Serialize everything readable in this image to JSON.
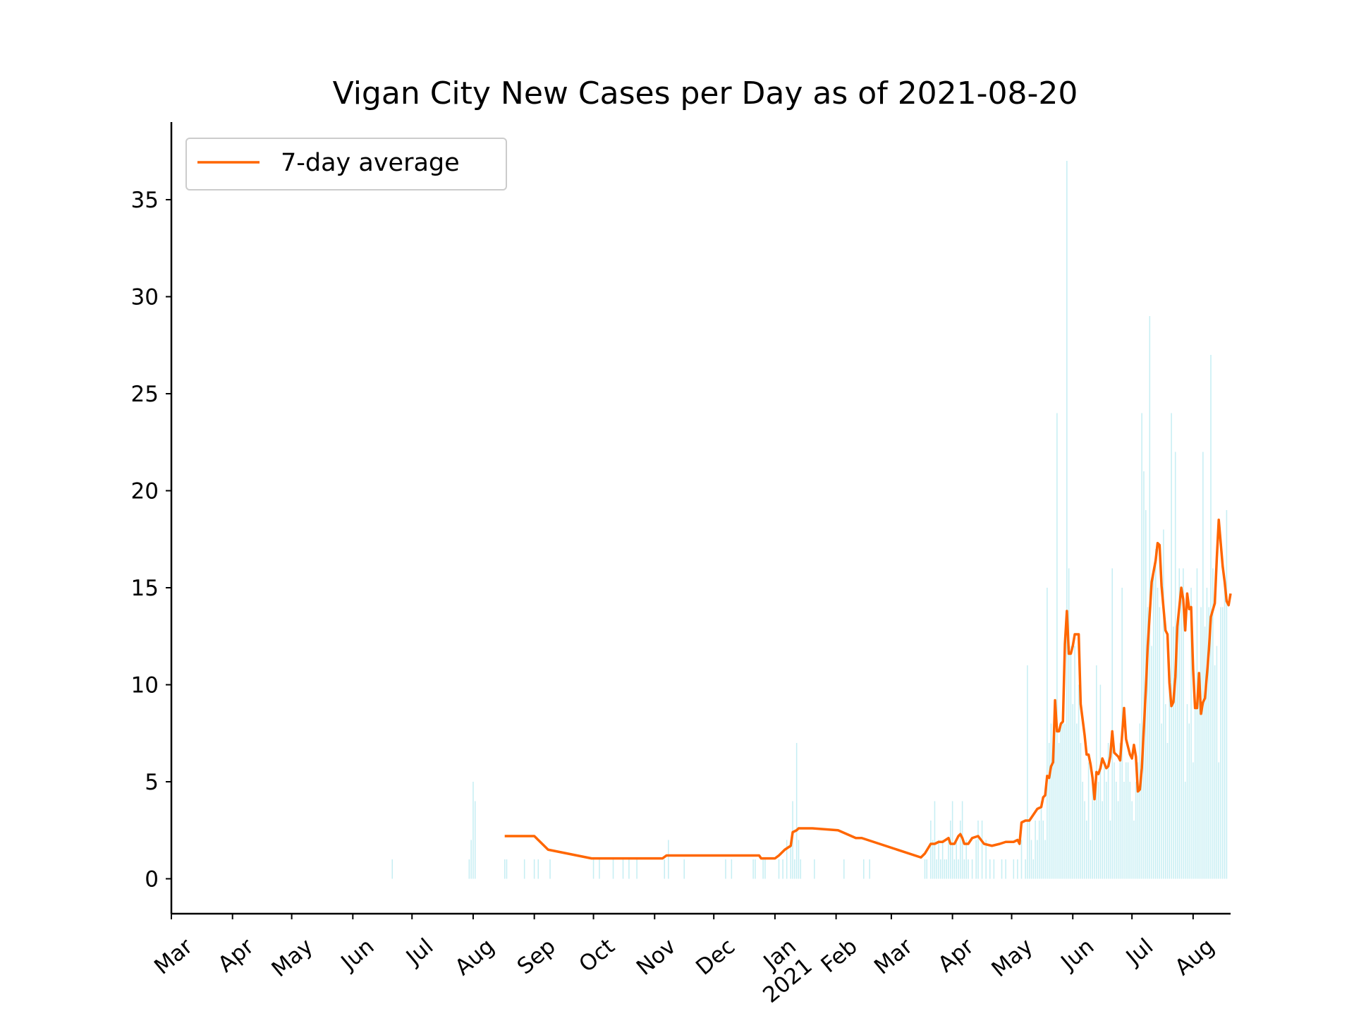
{
  "chart_data": {
    "type": "bar",
    "title": "Vigan City New Cases per Day as of 2021-08-20",
    "xlabel": "",
    "ylabel": "",
    "ylim": [
      -1.8,
      39
    ],
    "yticks": [
      0,
      5,
      10,
      15,
      20,
      25,
      30,
      35
    ],
    "xlim": [
      "2020-03-01",
      "2021-08-20"
    ],
    "xticks": [
      {
        "date": "2020-03-01",
        "label": "Mar"
      },
      {
        "date": "2020-04-01",
        "label": "Apr"
      },
      {
        "date": "2020-05-01",
        "label": "May"
      },
      {
        "date": "2020-06-01",
        "label": "Jun"
      },
      {
        "date": "2020-07-01",
        "label": "Jul"
      },
      {
        "date": "2020-08-01",
        "label": "Aug"
      },
      {
        "date": "2020-09-01",
        "label": "Sep"
      },
      {
        "date": "2020-10-01",
        "label": "Oct"
      },
      {
        "date": "2020-11-01",
        "label": "Nov"
      },
      {
        "date": "2020-12-01",
        "label": "Dec"
      },
      {
        "date": "2021-01-01",
        "label": "Jan\n2021"
      },
      {
        "date": "2021-02-01",
        "label": "Feb"
      },
      {
        "date": "2021-03-01",
        "label": "Mar"
      },
      {
        "date": "2021-04-01",
        "label": "Apr"
      },
      {
        "date": "2021-05-01",
        "label": "May"
      },
      {
        "date": "2021-06-01",
        "label": "Jun"
      },
      {
        "date": "2021-07-01",
        "label": "Jul"
      },
      {
        "date": "2021-08-01",
        "label": "Aug"
      }
    ],
    "legend": {
      "position": "top-left",
      "entries": [
        "7-day average"
      ]
    },
    "grid": false,
    "colors": {
      "bars": "#c6eef3",
      "line": "#ff6600"
    },
    "bars": [
      [
        "2020-06-21",
        1
      ],
      [
        "2020-07-30",
        1
      ],
      [
        "2020-07-31",
        2
      ],
      [
        "2020-08-01",
        5
      ],
      [
        "2020-08-02",
        4
      ],
      [
        "2020-08-17",
        1
      ],
      [
        "2020-08-18",
        1
      ],
      [
        "2020-08-27",
        1
      ],
      [
        "2020-09-01",
        1
      ],
      [
        "2020-09-03",
        1
      ],
      [
        "2020-09-09",
        1
      ],
      [
        "2020-10-01",
        1
      ],
      [
        "2020-10-04",
        1
      ],
      [
        "2020-10-11",
        1
      ],
      [
        "2020-10-16",
        1
      ],
      [
        "2020-10-19",
        1
      ],
      [
        "2020-10-23",
        1
      ],
      [
        "2020-11-06",
        1
      ],
      [
        "2020-11-08",
        2
      ],
      [
        "2020-11-16",
        1
      ],
      [
        "2020-12-07",
        1
      ],
      [
        "2020-12-10",
        1
      ],
      [
        "2020-12-21",
        1
      ],
      [
        "2020-12-22",
        1
      ],
      [
        "2020-12-26",
        1
      ],
      [
        "2020-12-27",
        1
      ],
      [
        "2021-01-03",
        1
      ],
      [
        "2021-01-05",
        1
      ],
      [
        "2021-01-07",
        2
      ],
      [
        "2021-01-09",
        2
      ],
      [
        "2021-01-10",
        4
      ],
      [
        "2021-01-11",
        1
      ],
      [
        "2021-01-12",
        7
      ],
      [
        "2021-01-13",
        2
      ],
      [
        "2021-01-14",
        1
      ],
      [
        "2021-01-21",
        1
      ],
      [
        "2021-02-05",
        1
      ],
      [
        "2021-02-15",
        1
      ],
      [
        "2021-02-18",
        1
      ],
      [
        "2021-03-18",
        1
      ],
      [
        "2021-03-19",
        1
      ],
      [
        "2021-03-21",
        3
      ],
      [
        "2021-03-22",
        2
      ],
      [
        "2021-03-23",
        4
      ],
      [
        "2021-03-24",
        1
      ],
      [
        "2021-03-25",
        2
      ],
      [
        "2021-03-26",
        1
      ],
      [
        "2021-03-27",
        2
      ],
      [
        "2021-03-28",
        1
      ],
      [
        "2021-03-29",
        1
      ],
      [
        "2021-03-30",
        2
      ],
      [
        "2021-03-31",
        3
      ],
      [
        "2021-04-01",
        4
      ],
      [
        "2021-04-02",
        1
      ],
      [
        "2021-04-03",
        2
      ],
      [
        "2021-04-04",
        1
      ],
      [
        "2021-04-05",
        3
      ],
      [
        "2021-04-06",
        4
      ],
      [
        "2021-04-07",
        1
      ],
      [
        "2021-04-08",
        2
      ],
      [
        "2021-04-09",
        1
      ],
      [
        "2021-04-11",
        1
      ],
      [
        "2021-04-13",
        2
      ],
      [
        "2021-04-14",
        3
      ],
      [
        "2021-04-16",
        3
      ],
      [
        "2021-04-18",
        2
      ],
      [
        "2021-04-20",
        1
      ],
      [
        "2021-04-22",
        1
      ],
      [
        "2021-04-26",
        1
      ],
      [
        "2021-04-28",
        1
      ],
      [
        "2021-05-02",
        1
      ],
      [
        "2021-05-04",
        1
      ],
      [
        "2021-05-06",
        2
      ],
      [
        "2021-05-08",
        1
      ],
      [
        "2021-05-09",
        11
      ],
      [
        "2021-05-10",
        3
      ],
      [
        "2021-05-11",
        2
      ],
      [
        "2021-05-12",
        1
      ],
      [
        "2021-05-13",
        3
      ],
      [
        "2021-05-14",
        2
      ],
      [
        "2021-05-15",
        3
      ],
      [
        "2021-05-16",
        4
      ],
      [
        "2021-05-17",
        3
      ],
      [
        "2021-05-18",
        2
      ],
      [
        "2021-05-19",
        15
      ],
      [
        "2021-05-20",
        7
      ],
      [
        "2021-05-21",
        8
      ],
      [
        "2021-05-22",
        6
      ],
      [
        "2021-05-23",
        9
      ],
      [
        "2021-05-24",
        24
      ],
      [
        "2021-05-25",
        7
      ],
      [
        "2021-05-26",
        8
      ],
      [
        "2021-05-27",
        9
      ],
      [
        "2021-05-28",
        8
      ],
      [
        "2021-05-29",
        37
      ],
      [
        "2021-05-30",
        16
      ],
      [
        "2021-05-31",
        12
      ],
      [
        "2021-06-01",
        9
      ],
      [
        "2021-06-02",
        12
      ],
      [
        "2021-06-03",
        8
      ],
      [
        "2021-06-04",
        10
      ],
      [
        "2021-06-05",
        7
      ],
      [
        "2021-06-06",
        5
      ],
      [
        "2021-06-07",
        4
      ],
      [
        "2021-06-08",
        3
      ],
      [
        "2021-06-09",
        6
      ],
      [
        "2021-06-10",
        2
      ],
      [
        "2021-06-11",
        5
      ],
      [
        "2021-06-12",
        4
      ],
      [
        "2021-06-13",
        11
      ],
      [
        "2021-06-14",
        5
      ],
      [
        "2021-06-15",
        10
      ],
      [
        "2021-06-16",
        4
      ],
      [
        "2021-06-17",
        6
      ],
      [
        "2021-06-18",
        5
      ],
      [
        "2021-06-19",
        7
      ],
      [
        "2021-06-20",
        3
      ],
      [
        "2021-06-21",
        16
      ],
      [
        "2021-06-22",
        6
      ],
      [
        "2021-06-23",
        5
      ],
      [
        "2021-06-24",
        4
      ],
      [
        "2021-06-25",
        7
      ],
      [
        "2021-06-26",
        15
      ],
      [
        "2021-06-27",
        5
      ],
      [
        "2021-06-28",
        6
      ],
      [
        "2021-06-29",
        6
      ],
      [
        "2021-06-30",
        5
      ],
      [
        "2021-07-01",
        4
      ],
      [
        "2021-07-02",
        3
      ],
      [
        "2021-07-03",
        5
      ],
      [
        "2021-07-04",
        6
      ],
      [
        "2021-07-05",
        8
      ],
      [
        "2021-07-06",
        24
      ],
      [
        "2021-07-07",
        21
      ],
      [
        "2021-07-08",
        19
      ],
      [
        "2021-07-09",
        14
      ],
      [
        "2021-07-10",
        29
      ],
      [
        "2021-07-11",
        12
      ],
      [
        "2021-07-12",
        16
      ],
      [
        "2021-07-13",
        17
      ],
      [
        "2021-07-14",
        15
      ],
      [
        "2021-07-15",
        14
      ],
      [
        "2021-07-16",
        8
      ],
      [
        "2021-07-17",
        18
      ],
      [
        "2021-07-18",
        9
      ],
      [
        "2021-07-19",
        7
      ],
      [
        "2021-07-20",
        10
      ],
      [
        "2021-07-21",
        24
      ],
      [
        "2021-07-22",
        13
      ],
      [
        "2021-07-23",
        22
      ],
      [
        "2021-07-24",
        12
      ],
      [
        "2021-07-25",
        16
      ],
      [
        "2021-07-26",
        15
      ],
      [
        "2021-07-27",
        16
      ],
      [
        "2021-07-28",
        5
      ],
      [
        "2021-07-29",
        9
      ],
      [
        "2021-07-30",
        8
      ],
      [
        "2021-07-31",
        15
      ],
      [
        "2021-08-01",
        6
      ],
      [
        "2021-08-02",
        9
      ],
      [
        "2021-08-03",
        16
      ],
      [
        "2021-08-04",
        10
      ],
      [
        "2021-08-05",
        14
      ],
      [
        "2021-08-06",
        22
      ],
      [
        "2021-08-07",
        13
      ],
      [
        "2021-08-08",
        15
      ],
      [
        "2021-08-09",
        14
      ],
      [
        "2021-08-10",
        27
      ],
      [
        "2021-08-11",
        16
      ],
      [
        "2021-08-12",
        11
      ],
      [
        "2021-08-13",
        12
      ],
      [
        "2021-08-14",
        6
      ],
      [
        "2021-08-15",
        14
      ],
      [
        "2021-08-16",
        14
      ],
      [
        "2021-08-17",
        15
      ],
      [
        "2021-08-18",
        19
      ]
    ],
    "series": [
      {
        "name": "7-day average",
        "points": [
          [
            "2020-08-17",
            2.2
          ],
          [
            "2020-09-01",
            2.2
          ],
          [
            "2020-09-04",
            1.9
          ],
          [
            "2020-09-08",
            1.5
          ],
          [
            "2020-09-30",
            1.05
          ],
          [
            "2020-11-05",
            1.05
          ],
          [
            "2020-11-07",
            1.2
          ],
          [
            "2020-12-24",
            1.2
          ],
          [
            "2020-12-25",
            1.05
          ],
          [
            "2021-01-01",
            1.05
          ],
          [
            "2021-01-03",
            1.2
          ],
          [
            "2021-01-06",
            1.5
          ],
          [
            "2021-01-09",
            1.7
          ],
          [
            "2021-01-10",
            2.4
          ],
          [
            "2021-01-12",
            2.5
          ],
          [
            "2021-01-13",
            2.6
          ],
          [
            "2021-01-20",
            2.6
          ],
          [
            "2021-02-02",
            2.5
          ],
          [
            "2021-02-11",
            2.1
          ],
          [
            "2021-02-14",
            2.1
          ],
          [
            "2021-03-16",
            1.1
          ],
          [
            "2021-03-18",
            1.3
          ],
          [
            "2021-03-21",
            1.8
          ],
          [
            "2021-03-23",
            1.8
          ],
          [
            "2021-03-25",
            1.9
          ],
          [
            "2021-03-27",
            1.9
          ],
          [
            "2021-03-30",
            2.1
          ],
          [
            "2021-03-31",
            1.8
          ],
          [
            "2021-04-02",
            1.8
          ],
          [
            "2021-04-04",
            2.2
          ],
          [
            "2021-04-05",
            2.3
          ],
          [
            "2021-04-06",
            2.1
          ],
          [
            "2021-04-07",
            1.8
          ],
          [
            "2021-04-09",
            1.8
          ],
          [
            "2021-04-11",
            2.1
          ],
          [
            "2021-04-14",
            2.2
          ],
          [
            "2021-04-17",
            1.8
          ],
          [
            "2021-04-21",
            1.7
          ],
          [
            "2021-04-25",
            1.8
          ],
          [
            "2021-04-28",
            1.9
          ],
          [
            "2021-05-02",
            1.9
          ],
          [
            "2021-05-04",
            2.0
          ],
          [
            "2021-05-05",
            1.8
          ],
          [
            "2021-05-06",
            2.9
          ],
          [
            "2021-05-08",
            3.0
          ],
          [
            "2021-05-10",
            3.0
          ],
          [
            "2021-05-12",
            3.3
          ],
          [
            "2021-05-14",
            3.6
          ],
          [
            "2021-05-16",
            3.7
          ],
          [
            "2021-05-17",
            4.2
          ],
          [
            "2021-05-18",
            4.3
          ],
          [
            "2021-05-19",
            5.3
          ],
          [
            "2021-05-20",
            5.2
          ],
          [
            "2021-05-21",
            5.8
          ],
          [
            "2021-05-22",
            6.0
          ],
          [
            "2021-05-23",
            9.2
          ],
          [
            "2021-05-24",
            7.6
          ],
          [
            "2021-05-25",
            7.6
          ],
          [
            "2021-05-26",
            8.0
          ],
          [
            "2021-05-27",
            8.1
          ],
          [
            "2021-05-28",
            12.1
          ],
          [
            "2021-05-29",
            13.8
          ],
          [
            "2021-05-30",
            11.6
          ],
          [
            "2021-05-31",
            11.6
          ],
          [
            "2021-06-01",
            12.0
          ],
          [
            "2021-06-02",
            12.6
          ],
          [
            "2021-06-04",
            12.6
          ],
          [
            "2021-06-05",
            9.0
          ],
          [
            "2021-06-07",
            7.4
          ],
          [
            "2021-06-08",
            6.4
          ],
          [
            "2021-06-09",
            6.4
          ],
          [
            "2021-06-10",
            5.9
          ],
          [
            "2021-06-11",
            5.2
          ],
          [
            "2021-06-12",
            4.1
          ],
          [
            "2021-06-13",
            5.5
          ],
          [
            "2021-06-14",
            5.4
          ],
          [
            "2021-06-15",
            5.7
          ],
          [
            "2021-06-16",
            6.2
          ],
          [
            "2021-06-18",
            5.7
          ],
          [
            "2021-06-19",
            5.8
          ],
          [
            "2021-06-20",
            6.3
          ],
          [
            "2021-06-21",
            7.6
          ],
          [
            "2021-06-22",
            6.5
          ],
          [
            "2021-06-24",
            6.3
          ],
          [
            "2021-06-25",
            6.1
          ],
          [
            "2021-06-26",
            7.4
          ],
          [
            "2021-06-27",
            8.8
          ],
          [
            "2021-06-28",
            7.2
          ],
          [
            "2021-06-29",
            6.8
          ],
          [
            "2021-06-30",
            6.4
          ],
          [
            "2021-07-01",
            6.2
          ],
          [
            "2021-07-02",
            6.9
          ],
          [
            "2021-07-03",
            6.3
          ],
          [
            "2021-07-04",
            4.5
          ],
          [
            "2021-07-05",
            4.6
          ],
          [
            "2021-07-06",
            5.7
          ],
          [
            "2021-07-07",
            7.7
          ],
          [
            "2021-07-08",
            9.7
          ],
          [
            "2021-07-09",
            12.0
          ],
          [
            "2021-07-11",
            15.3
          ],
          [
            "2021-07-13",
            16.4
          ],
          [
            "2021-07-14",
            17.3
          ],
          [
            "2021-07-15",
            17.2
          ],
          [
            "2021-07-16",
            15.1
          ],
          [
            "2021-07-18",
            12.8
          ],
          [
            "2021-07-19",
            12.6
          ],
          [
            "2021-07-20",
            10.1
          ],
          [
            "2021-07-21",
            8.9
          ],
          [
            "2021-07-22",
            9.1
          ],
          [
            "2021-07-23",
            10.4
          ],
          [
            "2021-07-24",
            13.0
          ],
          [
            "2021-07-26",
            15.0
          ],
          [
            "2021-07-27",
            14.4
          ],
          [
            "2021-07-28",
            12.8
          ],
          [
            "2021-07-29",
            14.7
          ],
          [
            "2021-07-30",
            13.9
          ],
          [
            "2021-07-31",
            14.0
          ],
          [
            "2021-08-01",
            10.8
          ],
          [
            "2021-08-02",
            8.8
          ],
          [
            "2021-08-03",
            8.8
          ],
          [
            "2021-08-04",
            10.6
          ],
          [
            "2021-08-05",
            8.5
          ],
          [
            "2021-08-06",
            9.1
          ],
          [
            "2021-08-07",
            9.3
          ],
          [
            "2021-08-08",
            10.5
          ],
          [
            "2021-08-09",
            11.8
          ],
          [
            "2021-08-10",
            13.5
          ],
          [
            "2021-08-12",
            14.2
          ],
          [
            "2021-08-13",
            16.5
          ],
          [
            "2021-08-14",
            18.5
          ],
          [
            "2021-08-15",
            17.3
          ],
          [
            "2021-08-16",
            16.1
          ],
          [
            "2021-08-17",
            15.3
          ],
          [
            "2021-08-18",
            14.3
          ],
          [
            "2021-08-19",
            14.1
          ],
          [
            "2021-08-20",
            14.7
          ]
        ]
      }
    ]
  }
}
